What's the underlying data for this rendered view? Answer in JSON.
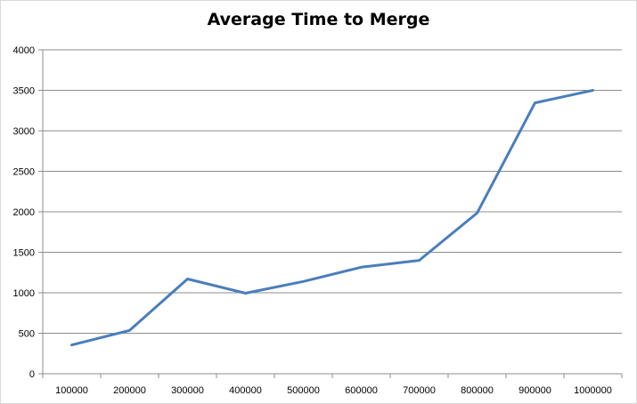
{
  "chart_data": {
    "type": "line",
    "title": "Average Time to Merge",
    "xlabel": "",
    "ylabel": "",
    "categories": [
      "100000",
      "200000",
      "300000",
      "400000",
      "500000",
      "600000",
      "700000",
      "800000",
      "900000",
      "1000000"
    ],
    "series": [
      {
        "values": [
          355,
          535,
          1170,
          995,
          1140,
          1315,
          1400,
          1985,
          3345,
          3500
        ]
      }
    ],
    "ylim": [
      0,
      4000
    ],
    "yticks": [
      0,
      500,
      1000,
      1500,
      2000,
      2500,
      3000,
      3500,
      4000
    ],
    "grid": true,
    "legend": "none",
    "colors": {
      "line": "#4a7ebb",
      "grid": "#8c8c8c",
      "axis": "#8c8c8c"
    }
  }
}
